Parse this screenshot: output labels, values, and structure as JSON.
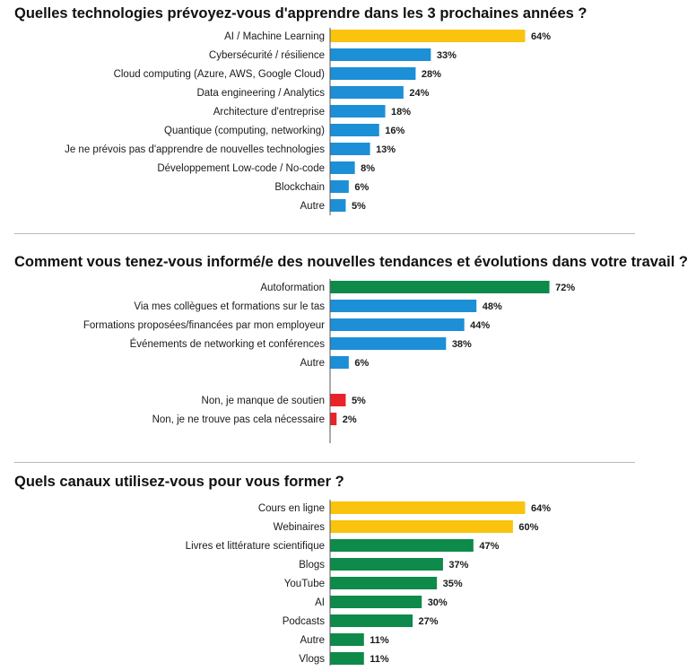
{
  "colors": {
    "yellow": "#F9C30E",
    "blue": "#1C8FD6",
    "green": "#0E8A4A",
    "red": "#E8242A",
    "axis": "#555555"
  },
  "chart_data": [
    {
      "type": "bar",
      "orientation": "horizontal",
      "title": "Quelles technologies prévoyez-vous d'apprendre dans les 3 prochaines années ?",
      "unit": "%",
      "xlim": [
        0,
        100
      ],
      "bars": [
        {
          "label": "AI / Machine Learning",
          "value": 64,
          "display": "64%",
          "color": "yellow"
        },
        {
          "label": "Cybersécurité / résilience",
          "value": 33,
          "display": "33%",
          "color": "blue"
        },
        {
          "label": "Cloud computing (Azure, AWS, Google Cloud)",
          "value": 28,
          "display": "28%",
          "color": "blue"
        },
        {
          "label": "Data engineering / Analytics",
          "value": 24,
          "display": "24%",
          "color": "blue"
        },
        {
          "label": "Architecture d'entreprise",
          "value": 18,
          "display": "18%",
          "color": "blue"
        },
        {
          "label": "Quantique (computing, networking)",
          "value": 16,
          "display": "16%",
          "color": "blue"
        },
        {
          "label": "Je ne prévois pas d'apprendre de nouvelles technologies",
          "value": 13,
          "display": "13%",
          "color": "blue"
        },
        {
          "label": "Développement Low-code / No-code",
          "value": 8,
          "display": "8%",
          "color": "blue"
        },
        {
          "label": "Blockchain",
          "value": 6,
          "display": "6%",
          "color": "blue"
        },
        {
          "label": "Autre",
          "value": 5,
          "display": "5%",
          "color": "blue"
        }
      ]
    },
    {
      "type": "bar",
      "orientation": "horizontal",
      "title": "Comment vous tenez-vous informé/e des nouvelles tendances et évolutions dans votre travail ?",
      "unit": "%",
      "xlim": [
        0,
        100
      ],
      "bars": [
        {
          "label": "Autoformation",
          "value": 72,
          "display": "72%",
          "color": "green"
        },
        {
          "label": "Via mes collègues et formations sur le tas",
          "value": 48,
          "display": "48%",
          "color": "blue"
        },
        {
          "label": "Formations proposées/financées par mon employeur",
          "value": 44,
          "display": "44%",
          "color": "blue"
        },
        {
          "label": "Événements de networking et conférences",
          "value": 38,
          "display": "38%",
          "color": "blue"
        },
        {
          "label": "Autre",
          "value": 6,
          "display": "6%",
          "color": "blue"
        },
        {
          "gap": true
        },
        {
          "label": "Non, je manque de soutien",
          "value": 5,
          "display": "5%",
          "color": "red"
        },
        {
          "label": "Non, je ne trouve pas cela nécessaire",
          "value": 2,
          "display": "2%",
          "color": "red"
        }
      ]
    },
    {
      "type": "bar",
      "orientation": "horizontal",
      "title": "Quels canaux utilisez-vous pour vous former ?",
      "unit": "%",
      "xlim": [
        0,
        100
      ],
      "bars": [
        {
          "label": "Cours en ligne",
          "value": 64,
          "display": "64%",
          "color": "yellow"
        },
        {
          "label": "Webinaires",
          "value": 60,
          "display": "60%",
          "color": "yellow"
        },
        {
          "label": "Livres et littérature scientifique",
          "value": 47,
          "display": "47%",
          "color": "green"
        },
        {
          "label": "Blogs",
          "value": 37,
          "display": "37%",
          "color": "green"
        },
        {
          "label": "YouTube",
          "value": 35,
          "display": "35%",
          "color": "green"
        },
        {
          "label": "AI",
          "value": 30,
          "display": "30%",
          "color": "green"
        },
        {
          "label": "Podcasts",
          "value": 27,
          "display": "27%",
          "color": "green"
        },
        {
          "label": "Autre",
          "value": 11,
          "display": "11%",
          "color": "green"
        },
        {
          "label": "Vlogs",
          "value": 11,
          "display": "11%",
          "color": "green"
        }
      ]
    }
  ]
}
